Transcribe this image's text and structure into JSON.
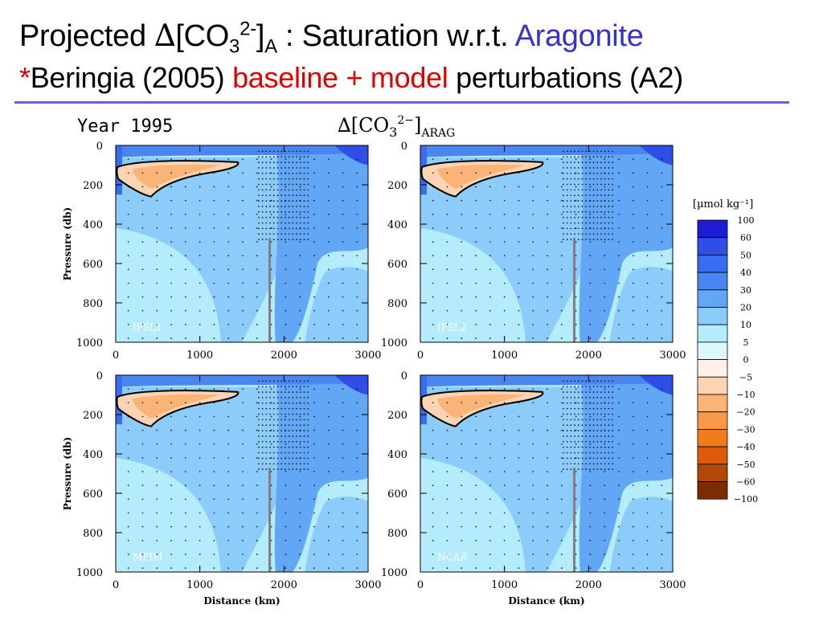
{
  "title": {
    "line1_prefix": "Projected ",
    "delta": "∆",
    "bracket_open": "[CO",
    "sub3": "3",
    "sup": "2-",
    "bracket_close": "]",
    "subA": "A",
    "mid": " : Saturation w.r.t. ",
    "accent": "Aragonite",
    "line2_star": "*",
    "line2_a": "Beringia (2005) ",
    "line2_red": "baseline + model",
    "line2_b": " perturbations (A2)"
  },
  "figure": {
    "year_label": "Year 1995",
    "var_label_delta": "∆[CO",
    "var_label_sub": "3",
    "var_label_sup": "2−",
    "var_label_close": "]",
    "var_label_subscript": "ARAG",
    "ylabel": "Pressure (db)",
    "xlabel": "Distance (km)",
    "xticks": [
      "0",
      "1000",
      "2000",
      "3000"
    ],
    "yticks": [
      "0",
      "200",
      "400",
      "600",
      "800",
      "1000"
    ],
    "panels": [
      "IPSL1",
      "IPSL2",
      "MPIM",
      "NCAR"
    ]
  },
  "colorbar": {
    "unit_label": "[µmol kg⁻¹]",
    "labels": [
      "100",
      "60",
      "50",
      "40",
      "30",
      "20",
      "10",
      "5",
      "0",
      "−5",
      "−10",
      "−20",
      "−30",
      "−40",
      "−50",
      "−60",
      "−100"
    ],
    "colors": [
      "#1c1cd6",
      "#2e4ee6",
      "#3a6cf0",
      "#4a86f2",
      "#62a6f6",
      "#8cccfa",
      "#b4ecfc",
      "#dcf8fc",
      "#fff0ea",
      "#fcd4b4",
      "#fab478",
      "#f89848",
      "#f07c1c",
      "#dc5c0c",
      "#b04808",
      "#7c2c04"
    ]
  },
  "chart_data": {
    "type": "heatmap",
    "title": "Year 1995",
    "xlabel": "Distance (km)",
    "ylabel": "Pressure (db)",
    "xlim": [
      0,
      3000
    ],
    "ylim": [
      1000,
      0
    ],
    "panels": [
      "IPSL1",
      "IPSL2",
      "MPIM",
      "NCAR"
    ],
    "colorbar_levels": [
      100,
      60,
      50,
      40,
      30,
      20,
      10,
      5,
      0,
      -5,
      -10,
      -20,
      -30,
      -40,
      -50,
      -60,
      -100
    ],
    "colorbar_units": "µmol kg⁻¹"
  }
}
